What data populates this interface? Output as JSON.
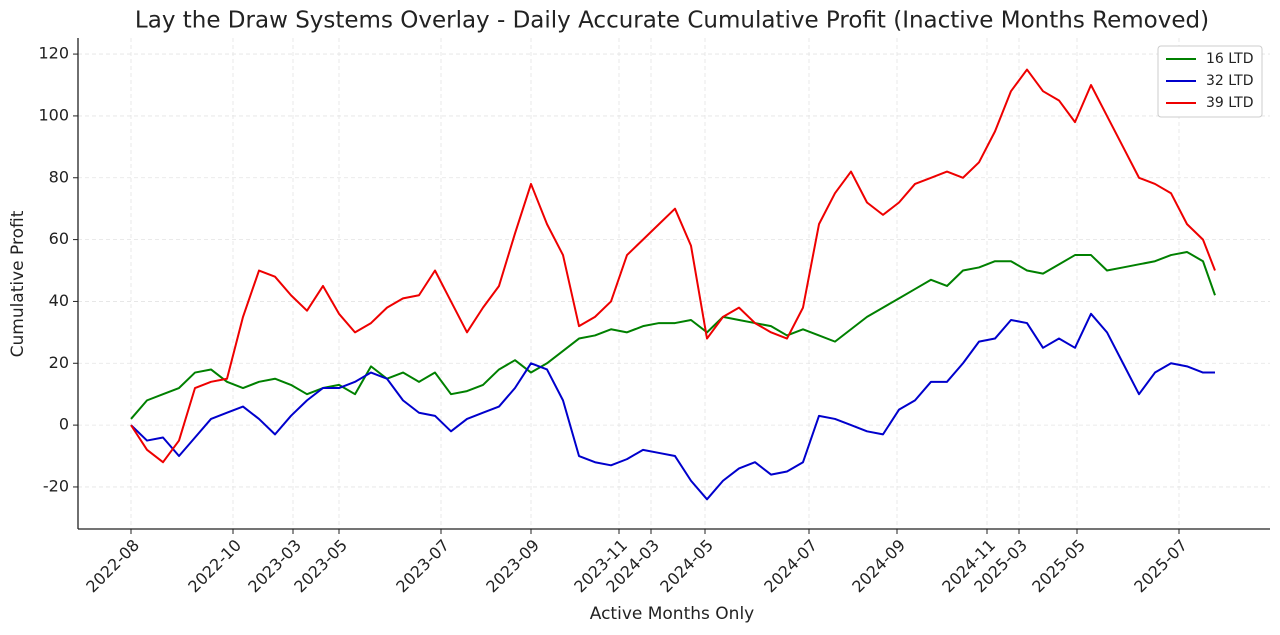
{
  "chart_data": {
    "type": "line",
    "title": "Lay the Draw Systems Overlay - Daily Accurate Cumulative Profit (Inactive Months Removed)",
    "xlabel": "Active Months Only",
    "ylabel": "Cumulative Profit",
    "x": [
      0,
      8,
      16,
      24,
      32,
      40,
      48,
      56,
      64,
      72,
      80,
      88,
      96,
      104,
      112,
      120,
      128,
      136,
      144,
      152,
      160,
      168,
      176,
      184,
      192,
      200,
      208,
      216,
      224,
      232,
      240,
      248,
      256,
      264,
      272,
      280,
      288,
      296,
      304,
      312,
      320,
      328,
      336,
      344,
      352,
      360,
      368,
      376,
      384,
      392,
      400,
      408,
      416,
      424,
      432,
      440,
      448,
      456,
      464,
      472,
      480,
      488,
      496,
      504,
      512,
      520,
      528,
      536,
      542
    ],
    "series": [
      {
        "name": "16 LTD",
        "color": "#008000",
        "values": [
          2,
          8,
          10,
          12,
          17,
          18,
          14,
          12,
          14,
          15,
          13,
          10,
          12,
          13,
          10,
          19,
          15,
          17,
          14,
          17,
          10,
          11,
          13,
          18,
          21,
          17,
          20,
          24,
          28,
          29,
          31,
          30,
          32,
          33,
          33,
          34,
          30,
          35,
          34,
          33,
          32,
          29,
          31,
          29,
          27,
          31,
          35,
          38,
          41,
          44,
          47,
          45,
          50,
          51,
          53,
          53,
          50,
          49,
          52,
          55,
          55,
          50,
          51,
          52,
          53,
          55,
          56,
          53,
          42
        ]
      },
      {
        "name": "32 LTD",
        "color": "#0000cc",
        "values": [
          0,
          -5,
          -4,
          -10,
          -4,
          2,
          4,
          6,
          2,
          -3,
          3,
          8,
          12,
          12,
          14,
          17,
          15,
          8,
          4,
          3,
          -2,
          2,
          4,
          6,
          12,
          20,
          18,
          8,
          -10,
          -12,
          -13,
          -11,
          -8,
          -9,
          -10,
          -18,
          -24,
          -18,
          -14,
          -12,
          -16,
          -15,
          -12,
          3,
          2,
          0,
          -2,
          -3,
          5,
          8,
          14,
          14,
          20,
          27,
          28,
          34,
          33,
          25,
          28,
          25,
          36,
          30,
          20,
          10,
          17,
          20,
          19,
          17,
          17
        ]
      },
      {
        "name": "39 LTD",
        "color": "#ee0000",
        "values": [
          0,
          -8,
          -12,
          -5,
          12,
          14,
          15,
          35,
          50,
          48,
          42,
          37,
          45,
          36,
          30,
          33,
          38,
          41,
          42,
          50,
          40,
          30,
          38,
          45,
          62,
          78,
          65,
          55,
          32,
          35,
          40,
          55,
          60,
          65,
          70,
          58,
          28,
          35,
          38,
          33,
          30,
          28,
          38,
          65,
          75,
          82,
          72,
          68,
          72,
          78,
          80,
          82,
          80,
          85,
          95,
          108,
          115,
          108,
          105,
          98,
          110,
          100,
          90,
          80,
          78,
          75,
          65,
          60,
          50
        ]
      }
    ],
    "xlim": [
      -26.5,
      569.5
    ],
    "xticks": [
      {
        "value": 0,
        "label": "2022-08"
      },
      {
        "value": 51,
        "label": "2022-10"
      },
      {
        "value": 81,
        "label": "2023-03"
      },
      {
        "value": 104,
        "label": "2023-05"
      },
      {
        "value": 155,
        "label": "2023-07"
      },
      {
        "value": 200,
        "label": "2023-09"
      },
      {
        "value": 244,
        "label": "2023-11"
      },
      {
        "value": 260,
        "label": "2024-03"
      },
      {
        "value": 287,
        "label": "2024-05"
      },
      {
        "value": 339,
        "label": "2024-07"
      },
      {
        "value": 383,
        "label": "2024-09"
      },
      {
        "value": 428,
        "label": "2024-11"
      },
      {
        "value": 444,
        "label": "2025-03"
      },
      {
        "value": 473,
        "label": "2025-05"
      },
      {
        "value": 524,
        "label": "2025-07"
      }
    ],
    "ylim": [
      -33.6,
      125.2
    ],
    "yticks": [
      -20,
      0,
      20,
      40,
      60,
      80,
      100,
      120
    ],
    "grid": true,
    "legend": "upper right"
  }
}
